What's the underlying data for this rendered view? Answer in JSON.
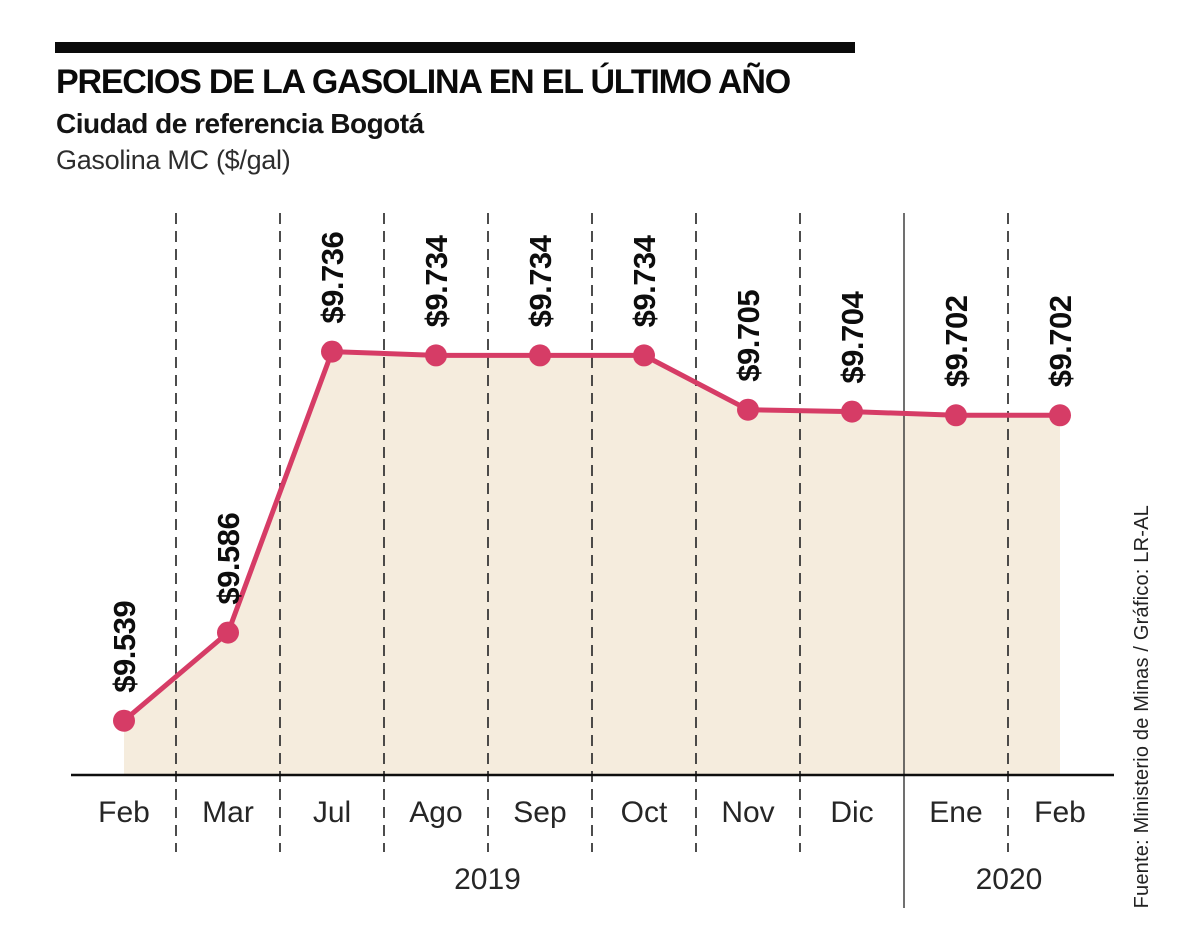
{
  "header": {
    "title": "PRECIOS DE LA GASOLINA EN EL ÚLTIMO AÑO",
    "subtitle": "Ciudad de referencia Bogotá",
    "unit": "Gasolina MC ($/gal)"
  },
  "footer": {
    "source": "Fuente: Ministerio de Minas / Gráfico: LR-AL"
  },
  "colors": {
    "line": "#d63c66",
    "point": "#d63c66",
    "area": "#f5ecdd",
    "grid": "#2e2e2e",
    "separator": "#333333",
    "axis": "#0e0e0e",
    "label_text": "#0d0d0d",
    "month_text": "#262626",
    "accent_bar": "#0a0a0a"
  },
  "chart_data": {
    "type": "area",
    "title": "PRECIOS DE LA GASOLINA EN EL ÚLTIMO AÑO",
    "subtitle": "Ciudad de referencia Bogotá",
    "ylabel": "Gasolina MC ($/gal)",
    "xlabel": "",
    "categories": [
      "Feb",
      "Mar",
      "Jul",
      "Ago",
      "Sep",
      "Oct",
      "Nov",
      "Dic",
      "Ene",
      "Feb"
    ],
    "values": [
      9539,
      9586,
      9736,
      9734,
      9734,
      9734,
      9705,
      9704,
      9702,
      9702
    ],
    "point_labels": [
      "$9.539",
      "$9.586",
      "$9.736",
      "$9.734",
      "$9.734",
      "$9.734",
      "$9.705",
      "$9.704",
      "$9.702",
      "$9.702"
    ],
    "year_groups": [
      {
        "label": "2019",
        "from_index": 0,
        "to_index": 7
      },
      {
        "label": "2020",
        "from_index": 8,
        "to_index": 9
      }
    ],
    "ylim": [
      9510,
      9810
    ],
    "grid": "vertical-dashed",
    "year_separator_between": [
      "Dic",
      "Ene"
    ],
    "legend": "none"
  }
}
